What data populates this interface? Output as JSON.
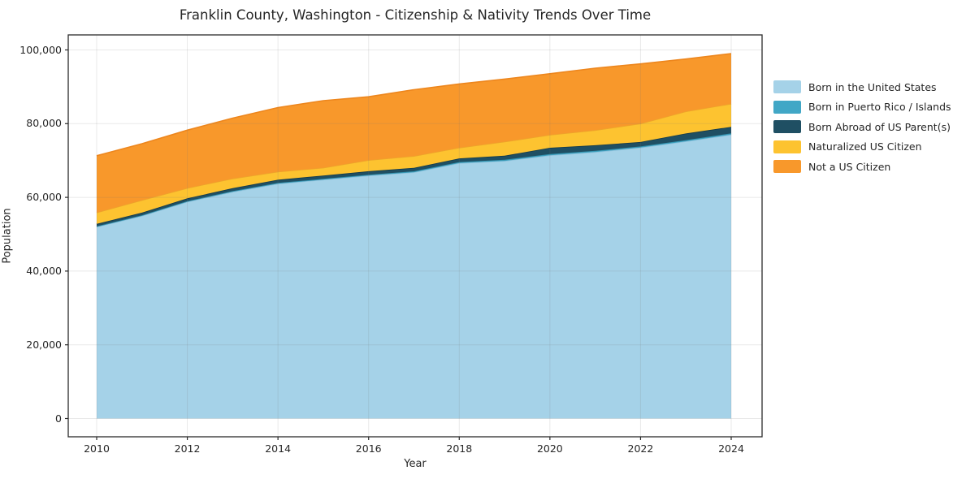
{
  "chart_data": {
    "type": "area",
    "stacked": true,
    "title": "Franklin County, Washington - Citizenship & Nativity Trends Over Time",
    "xlabel": "Year",
    "ylabel": "Population",
    "x": [
      2010,
      2011,
      2012,
      2013,
      2014,
      2015,
      2016,
      2017,
      2018,
      2019,
      2020,
      2021,
      2022,
      2023,
      2024
    ],
    "xticks": [
      2010,
      2012,
      2014,
      2016,
      2018,
      2020,
      2022,
      2024
    ],
    "yticks": [
      0,
      20000,
      40000,
      60000,
      80000,
      100000
    ],
    "ytick_labels": [
      "0",
      "20,000",
      "40,000",
      "60,000",
      "80,000",
      "100,000"
    ],
    "xlim": [
      2009.3,
      2024.7
    ],
    "ylim": [
      -4950,
      103950
    ],
    "grid": true,
    "legend_position": "right",
    "series": [
      {
        "name": "Born in the United States",
        "color": "#a5d2e8",
        "edge": "#8fc2dc",
        "values": [
          52000,
          55000,
          58800,
          61500,
          63700,
          64800,
          65900,
          66800,
          69300,
          69900,
          71400,
          72300,
          73500,
          75200,
          77000
        ]
      },
      {
        "name": "Born in Puerto Rico / Islands",
        "color": "#41a7c6",
        "edge": "#3391ad",
        "values": [
          150,
          160,
          180,
          200,
          220,
          230,
          250,
          260,
          280,
          300,
          350,
          340,
          320,
          330,
          350
        ]
      },
      {
        "name": "Born Abroad of US Parent(s)",
        "color": "#1f4f63",
        "edge": "#153a49",
        "values": [
          650,
          700,
          750,
          800,
          850,
          900,
          950,
          950,
          1000,
          1100,
          1700,
          1500,
          1200,
          1800,
          1800
        ]
      },
      {
        "name": "Naturalized US Citizen",
        "color": "#fdc330",
        "edge": "#eda52a",
        "values": [
          3100,
          3400,
          2800,
          2600,
          2200,
          2100,
          3000,
          3200,
          2900,
          3800,
          3500,
          4100,
          5000,
          6000,
          6250
        ]
      },
      {
        "name": "Not a US Citizen",
        "color": "#f8982b",
        "edge": "#ed861d",
        "values": [
          15400,
          15300,
          15700,
          16400,
          17400,
          18200,
          17200,
          18000,
          17300,
          17000,
          16600,
          16800,
          16200,
          14200,
          13600
        ]
      }
    ],
    "frame_color": "#2b2b2b",
    "grid_color": "#787878",
    "background": "#ffffff"
  }
}
